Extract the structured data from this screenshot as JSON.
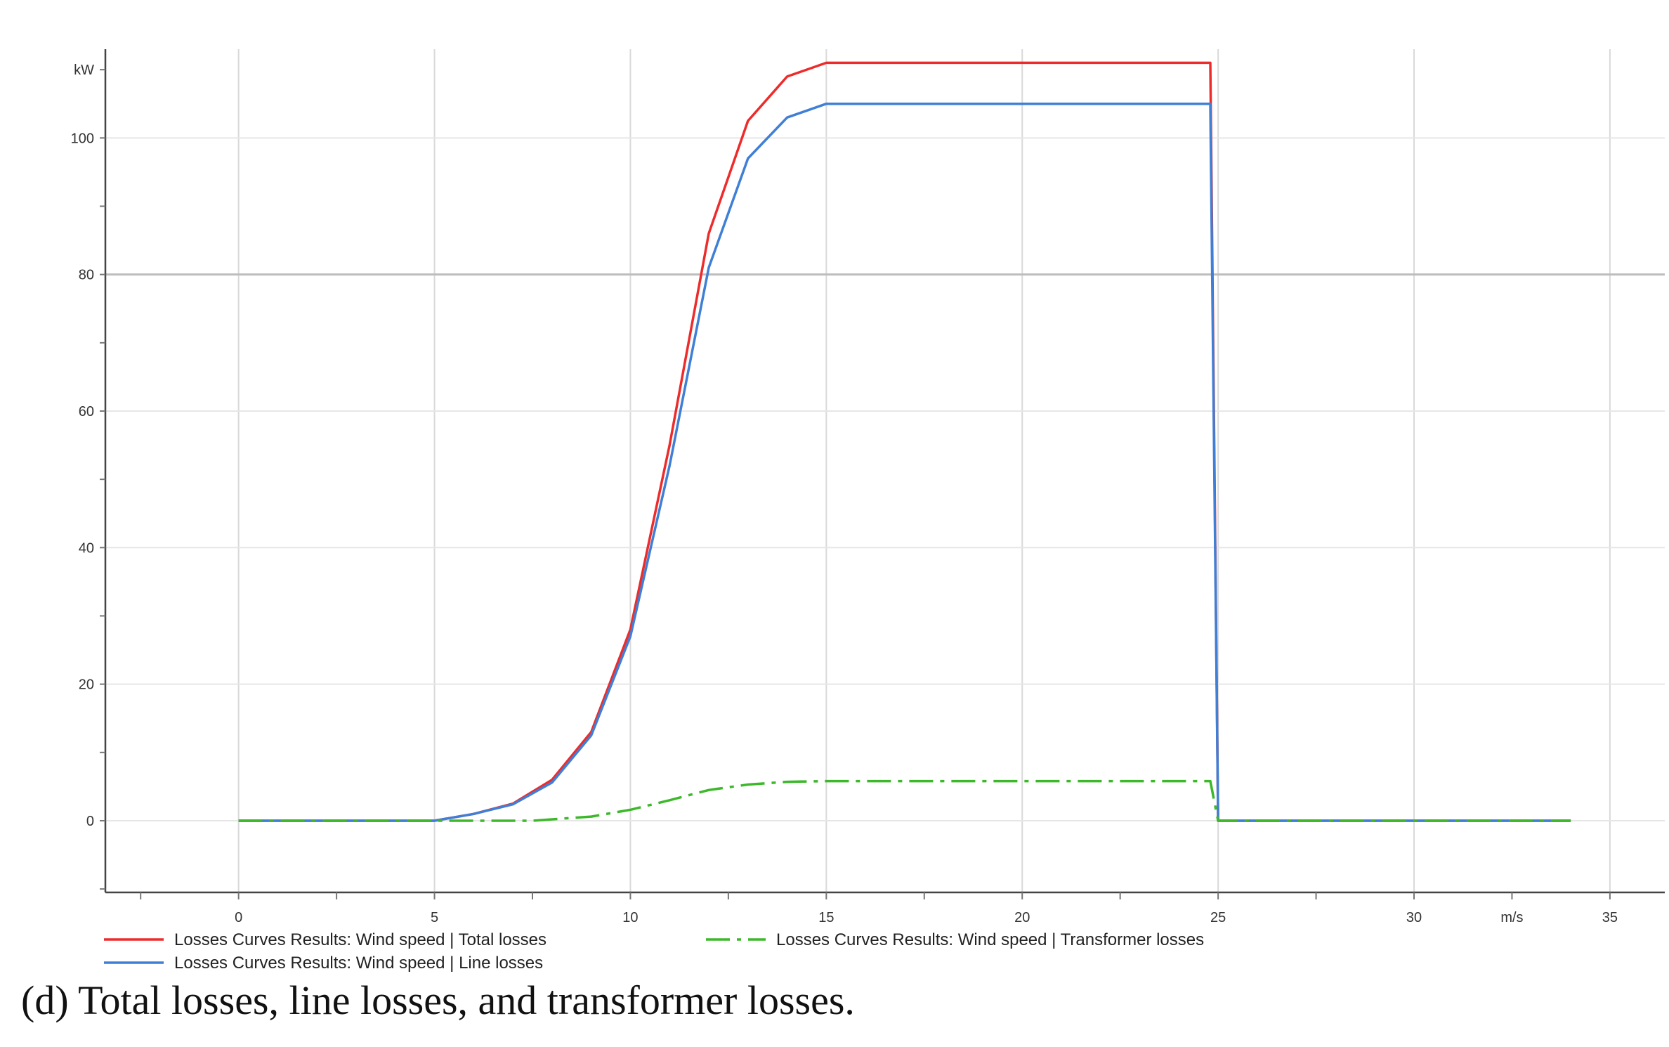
{
  "caption": "(d) Total losses, line losses, and transformer losses.",
  "chart_data": {
    "type": "line",
    "title": "",
    "xlabel": "m/s",
    "ylabel": "kW",
    "xlim": [
      -3.4,
      36.4
    ],
    "ylim": [
      -10.5,
      113
    ],
    "x_ticks": [
      0,
      5,
      10,
      15,
      20,
      25,
      30,
      35
    ],
    "y_ticks": [
      0,
      20,
      40,
      60,
      80,
      100
    ],
    "grid": true,
    "legend_position": "bottom",
    "series": [
      {
        "name": "Losses Curves Results: Wind speed  |  Total losses",
        "color": "#ee2b2b",
        "dash": "solid",
        "x": [
          0,
          5,
          6,
          7,
          8,
          9,
          10,
          11,
          12,
          13,
          14,
          15,
          24.8,
          25,
          34
        ],
        "y": [
          0,
          0,
          1,
          2.5,
          6,
          13,
          28,
          55,
          86,
          102.5,
          109,
          111,
          111,
          0,
          0
        ]
      },
      {
        "name": "Losses Curves Results: Wind speed  |  Line losses",
        "color": "#3f7fd6",
        "dash": "solid",
        "x": [
          0,
          5,
          6,
          7,
          8,
          9,
          10,
          11,
          12,
          13,
          14,
          15,
          24.8,
          25,
          34
        ],
        "y": [
          0,
          0,
          1,
          2.4,
          5.6,
          12.5,
          27,
          52,
          81,
          97,
          103,
          105,
          105,
          0,
          0
        ]
      },
      {
        "name": "Losses Curves Results: Wind speed  |  Transformer losses",
        "color": "#3cb82a",
        "dash": "dashdot",
        "x": [
          0,
          5,
          6,
          7,
          7.5,
          8,
          9,
          10,
          11,
          12,
          13,
          14,
          15,
          24.8,
          25,
          34
        ],
        "y": [
          0,
          0,
          0,
          0,
          0,
          0.2,
          0.6,
          1.6,
          3,
          4.5,
          5.3,
          5.7,
          5.8,
          5.8,
          0,
          0
        ]
      }
    ]
  }
}
